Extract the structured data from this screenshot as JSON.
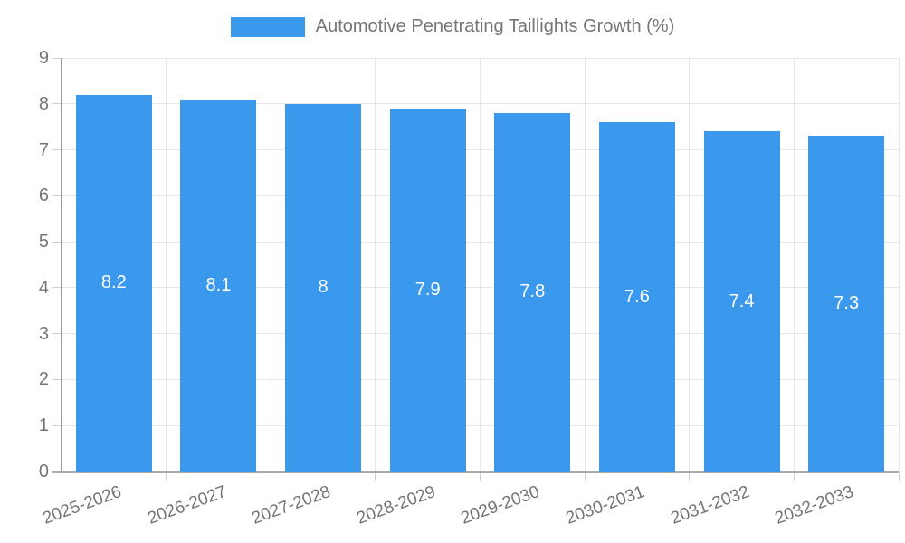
{
  "legend": {
    "label": "Automotive Penetrating Taillights Growth (%)"
  },
  "colors": {
    "bar": "#3a99ec",
    "grid": "#e6e6e6",
    "tick": "#cfcfcf",
    "axis": "#9a9a9a",
    "baseline": "#ababab",
    "text": "#757575",
    "bar_label_text": "#ffffff"
  },
  "chart_data": {
    "type": "bar",
    "title": "Automotive Penetrating Taillights Growth (%)",
    "categories": [
      "2025-2026",
      "2026-2027",
      "2027-2028",
      "2028-2029",
      "2029-2030",
      "2030-2031",
      "2031-2032",
      "2032-2033"
    ],
    "values": [
      8.2,
      8.1,
      8,
      7.9,
      7.8,
      7.6,
      7.4,
      7.3
    ],
    "bar_labels": [
      "8.2",
      "8.1",
      "8",
      "7.9",
      "7.8",
      "7.6",
      "7.4",
      "7.3"
    ],
    "xlabel": "",
    "ylabel": "",
    "ylim": [
      0,
      9
    ],
    "yticks": [
      0,
      1,
      2,
      3,
      4,
      5,
      6,
      7,
      8,
      9
    ],
    "grid": true,
    "legend_position": "top",
    "bar_color": "#3a99ec",
    "value_labels_inside_bars": true,
    "x_label_rotation_deg": -20
  }
}
